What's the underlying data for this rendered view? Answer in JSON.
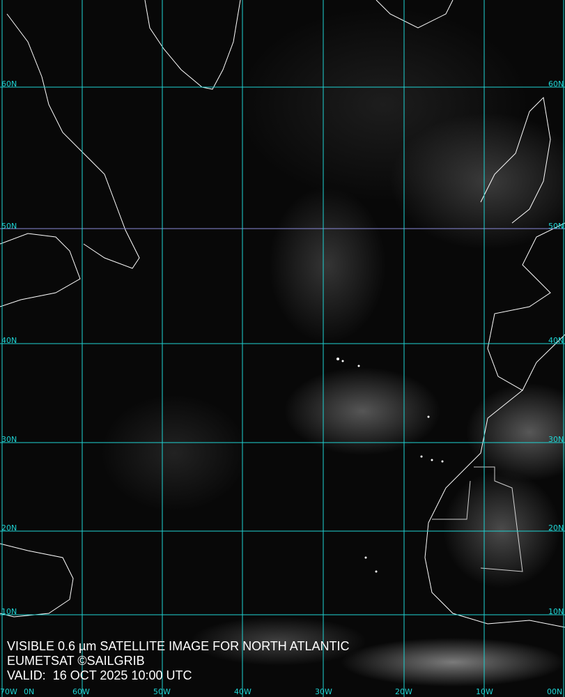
{
  "caption": {
    "title": "VISIBLE 0.6 µm SATELLITE IMAGE FOR NORTH ATLANTIC",
    "source": "EUMETSAT ©SAILGRIB",
    "valid": "VALID:  16 OCT 2025 10:00 UTC"
  },
  "grid": {
    "color": "#1fd3d3",
    "latitudes_left": [
      "60N",
      "50N",
      "40N",
      "30N",
      "20N",
      "10N"
    ],
    "latitudes_right": [
      "60N",
      "50N",
      "40N",
      "30N",
      "20N",
      "10N"
    ],
    "longitudes": [
      "70W",
      "60W",
      "50W",
      "40W",
      "30W",
      "20W",
      "10W",
      "00N"
    ],
    "corner_left": "0N"
  },
  "image": {
    "type": "visible satellite imagery",
    "coastline_color": "#ffffff"
  }
}
